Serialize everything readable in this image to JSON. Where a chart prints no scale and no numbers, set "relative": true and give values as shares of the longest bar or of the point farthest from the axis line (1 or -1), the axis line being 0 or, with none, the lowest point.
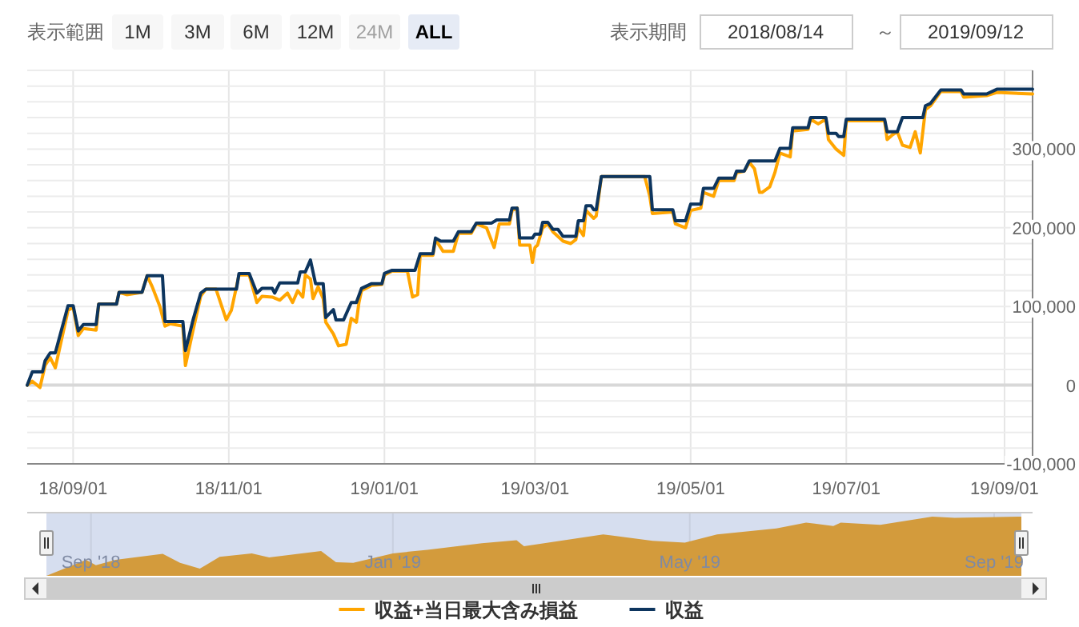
{
  "chart_data": [
    {
      "type": "line",
      "xlabel": null,
      "annotations": [
        "表示範囲",
        "1M",
        "3M",
        "6M",
        "12M",
        "24M",
        "ALL",
        "表示期間",
        "2018/08/14",
        "～",
        "2019/09/12"
      ],
      "xlim": [
        "2018-08-14",
        "2019-09-12"
      ],
      "xticks": [
        {
          "value": "2018-09-01",
          "label": "18/09/01"
        },
        {
          "value": "2018-11-01",
          "label": "18/11/01"
        },
        {
          "value": "2019-01-01",
          "label": "19/01/01"
        },
        {
          "value": "2019-03-01",
          "label": "19/03/01"
        },
        {
          "value": "2019-05-01",
          "label": "19/05/01"
        },
        {
          "value": "2019-07-01",
          "label": "19/07/01"
        },
        {
          "value": "2019-09-01",
          "label": "19/09/01"
        }
      ],
      "ylim": [
        -100000,
        400000
      ],
      "yticks": [
        {
          "value": -100000,
          "label": "-100,000"
        },
        {
          "value": -80000,
          "label": null
        },
        {
          "value": -60000,
          "label": null
        },
        {
          "value": -40000,
          "label": null
        },
        {
          "value": -20000,
          "label": null
        },
        0,
        {
          "value": 20000,
          "label": null
        },
        {
          "value": 40000,
          "label": null
        },
        {
          "value": 60000,
          "label": null
        },
        {
          "value": 80000,
          "label": null
        },
        {
          "value": 100000,
          "label": "100,000"
        },
        {
          "value": 120000,
          "label": null
        },
        {
          "value": 140000,
          "label": null
        },
        {
          "value": 160000,
          "label": null
        },
        {
          "value": 180000,
          "label": null
        },
        {
          "value": 200000,
          "label": "200,000"
        },
        {
          "value": 220000,
          "label": null
        },
        {
          "value": 240000,
          "label": null
        },
        {
          "value": 260000,
          "label": null
        },
        {
          "value": 280000,
          "label": null
        },
        {
          "value": 300000,
          "label": "300,000"
        },
        {
          "value": 320000,
          "label": null
        },
        {
          "value": 340000,
          "label": null
        },
        {
          "value": 360000,
          "label": null
        },
        {
          "value": 380000,
          "label": null
        },
        {
          "value": 400000,
          "label": null
        }
      ],
      "grid": true,
      "legend": "bottom",
      "marker": "none",
      "line_style": "solid",
      "series": [
        {
          "name": "収益+当日最大含み損益",
          "color": "#ffa500",
          "x": [
            "2018-08-14",
            "2018-08-16",
            "2018-08-19",
            "2018-08-21",
            "2018-08-23",
            "2018-08-25",
            "2018-08-30",
            "2018-09-01",
            "2018-09-03",
            "2018-09-05",
            "2018-09-10",
            "2018-09-11",
            "2018-09-18",
            "2018-09-19",
            "2018-09-22",
            "2018-09-28",
            "2018-09-30",
            "2018-10-02",
            "2018-10-05",
            "2018-10-07",
            "2018-10-09",
            "2018-10-14",
            "2018-10-15",
            "2018-10-18",
            "2018-10-21",
            "2018-10-23",
            "2018-10-27",
            "2018-10-31",
            "2018-11-02",
            "2018-11-05",
            "2018-11-09",
            "2018-11-12",
            "2018-11-14",
            "2018-11-18",
            "2018-11-21",
            "2018-11-24",
            "2018-11-26",
            "2018-11-28",
            "2018-11-30",
            "2018-12-01",
            "2018-12-03",
            "2018-12-04",
            "2018-12-06",
            "2018-12-08",
            "2018-12-09",
            "2018-12-12",
            "2018-12-14",
            "2018-12-17",
            "2018-12-19",
            "2018-12-21",
            "2018-12-22",
            "2018-12-23",
            "2018-12-27",
            "2018-12-31",
            "2019-01-01",
            "2019-01-04",
            "2019-01-10",
            "2019-01-12",
            "2019-01-14",
            "2019-01-15",
            "2019-01-20",
            "2019-01-21",
            "2019-01-24",
            "2019-01-28",
            "2019-01-30",
            "2019-02-04",
            "2019-02-06",
            "2019-02-10",
            "2019-02-13",
            "2019-02-15",
            "2019-02-19",
            "2019-02-20",
            "2019-02-22",
            "2019-02-23",
            "2019-02-27",
            "2019-02-28",
            "2019-03-01",
            "2019-03-02",
            "2019-03-04",
            "2019-03-06",
            "2019-03-08",
            "2019-03-12",
            "2019-03-15",
            "2019-03-17",
            "2019-03-18",
            "2019-03-20",
            "2019-03-21",
            "2019-03-24",
            "2019-03-25",
            "2019-03-27",
            "2019-04-13",
            "2019-04-15",
            "2019-04-16",
            "2019-04-24",
            "2019-04-25",
            "2019-04-29",
            "2019-05-01",
            "2019-05-05",
            "2019-05-06",
            "2019-05-10",
            "2019-05-12",
            "2019-05-18",
            "2019-05-19",
            "2019-05-22",
            "2019-05-24",
            "2019-05-26",
            "2019-05-28",
            "2019-05-29",
            "2019-06-01",
            "2019-06-03",
            "2019-06-05",
            "2019-06-09",
            "2019-06-10",
            "2019-06-16",
            "2019-06-17",
            "2019-06-20",
            "2019-06-23",
            "2019-06-24",
            "2019-06-27",
            "2019-06-30",
            "2019-07-01",
            "2019-07-16",
            "2019-07-17",
            "2019-07-19",
            "2019-07-21",
            "2019-07-23",
            "2019-07-26",
            "2019-07-28",
            "2019-07-30",
            "2019-08-01",
            "2019-08-03",
            "2019-08-07",
            "2019-08-15",
            "2019-08-16",
            "2019-08-25",
            "2019-08-29",
            "2019-09-12"
          ],
          "values": [
            0,
            5000,
            -3000,
            25000,
            35000,
            22000,
            95000,
            99000,
            63000,
            72000,
            70000,
            103000,
            103000,
            118000,
            115000,
            118000,
            139000,
            125000,
            100000,
            75000,
            78000,
            75000,
            25000,
            70000,
            113000,
            122000,
            122000,
            83000,
            95000,
            140000,
            140000,
            105000,
            113000,
            112000,
            108000,
            117000,
            105000,
            120000,
            112000,
            140000,
            135000,
            110000,
            125000,
            110000,
            80000,
            65000,
            50000,
            52000,
            85000,
            80000,
            105000,
            120000,
            127000,
            128000,
            140000,
            145000,
            145000,
            112000,
            115000,
            165000,
            165000,
            185000,
            170000,
            170000,
            193000,
            193000,
            205000,
            200000,
            175000,
            205000,
            205000,
            222000,
            225000,
            178000,
            178000,
            156000,
            175000,
            178000,
            200000,
            205000,
            195000,
            183000,
            180000,
            185000,
            200000,
            190000,
            222000,
            212000,
            215000,
            265000,
            265000,
            240000,
            218000,
            220000,
            205000,
            200000,
            222000,
            225000,
            245000,
            240000,
            260000,
            260000,
            270000,
            272000,
            283000,
            275000,
            245000,
            245000,
            252000,
            270000,
            295000,
            290000,
            323000,
            325000,
            338000,
            332000,
            338000,
            312000,
            300000,
            292000,
            336000,
            336000,
            312000,
            318000,
            322000,
            305000,
            302000,
            322000,
            295000,
            350000,
            355000,
            373000,
            373000,
            366000,
            368000,
            372000,
            370000
          ]
        },
        {
          "name": "収益",
          "color": "#0d355e",
          "x": [
            "2018-08-14",
            "2018-08-16",
            "2018-08-20",
            "2018-08-21",
            "2018-08-23",
            "2018-08-25",
            "2018-08-30",
            "2018-09-01",
            "2018-09-03",
            "2018-09-05",
            "2018-09-10",
            "2018-09-11",
            "2018-09-18",
            "2018-09-19",
            "2018-09-28",
            "2018-09-30",
            "2018-10-06",
            "2018-10-07",
            "2018-10-14",
            "2018-10-15",
            "2018-10-18",
            "2018-10-21",
            "2018-10-23",
            "2018-11-04",
            "2018-11-05",
            "2018-11-09",
            "2018-11-12",
            "2018-11-14",
            "2018-11-18",
            "2018-11-19",
            "2018-11-21",
            "2018-11-28",
            "2018-11-29",
            "2018-12-01",
            "2018-12-03",
            "2018-12-05",
            "2018-12-08",
            "2018-12-09",
            "2018-12-12",
            "2018-12-13",
            "2018-12-16",
            "2018-12-19",
            "2018-12-21",
            "2018-12-23",
            "2018-12-27",
            "2018-12-31",
            "2019-01-01",
            "2019-01-04",
            "2019-01-13",
            "2019-01-15",
            "2019-01-20",
            "2019-01-21",
            "2019-01-23",
            "2019-01-28",
            "2019-01-30",
            "2019-02-04",
            "2019-02-06",
            "2019-02-12",
            "2019-02-14",
            "2019-02-19",
            "2019-02-20",
            "2019-02-22",
            "2019-02-23",
            "2019-02-28",
            "2019-03-01",
            "2019-03-03",
            "2019-03-04",
            "2019-03-06",
            "2019-03-08",
            "2019-03-10",
            "2019-03-12",
            "2019-03-17",
            "2019-03-18",
            "2019-03-20",
            "2019-03-21",
            "2019-03-23",
            "2019-03-24",
            "2019-03-25",
            "2019-03-27",
            "2019-04-15",
            "2019-04-16",
            "2019-04-24",
            "2019-04-25",
            "2019-04-29",
            "2019-05-01",
            "2019-05-05",
            "2019-05-06",
            "2019-05-10",
            "2019-05-12",
            "2019-05-18",
            "2019-05-19",
            "2019-05-22",
            "2019-05-24",
            "2019-06-03",
            "2019-06-05",
            "2019-06-09",
            "2019-06-10",
            "2019-06-16",
            "2019-06-17",
            "2019-06-23",
            "2019-06-24",
            "2019-06-27",
            "2019-06-28",
            "2019-06-30",
            "2019-07-01",
            "2019-07-16",
            "2019-07-17",
            "2019-07-21",
            "2019-07-23",
            "2019-07-31",
            "2019-08-01",
            "2019-08-03",
            "2019-08-07",
            "2019-08-15",
            "2019-08-16",
            "2019-08-25",
            "2019-08-29",
            "2019-09-12"
          ],
          "values": [
            0,
            17000,
            17000,
            31000,
            41000,
            41000,
            101000,
            101000,
            69000,
            77000,
            77000,
            103000,
            103000,
            118000,
            118000,
            139000,
            139000,
            81000,
            81000,
            44000,
            83000,
            117000,
            122000,
            122000,
            142000,
            142000,
            117000,
            123000,
            123000,
            117000,
            130000,
            130000,
            144000,
            144000,
            159000,
            129000,
            129000,
            86000,
            96000,
            83000,
            83000,
            105000,
            105000,
            123000,
            129000,
            129000,
            142000,
            146000,
            146000,
            167000,
            167000,
            187000,
            183000,
            183000,
            195000,
            195000,
            206000,
            206000,
            210000,
            210000,
            225000,
            225000,
            187000,
            187000,
            192000,
            192000,
            207000,
            207000,
            198000,
            198000,
            189000,
            189000,
            209000,
            209000,
            228000,
            228000,
            223000,
            223000,
            265000,
            265000,
            223000,
            223000,
            209000,
            209000,
            230000,
            230000,
            250000,
            250000,
            263000,
            263000,
            272000,
            272000,
            285000,
            285000,
            301000,
            301000,
            327000,
            327000,
            340000,
            340000,
            320000,
            320000,
            316000,
            316000,
            338000,
            338000,
            322000,
            322000,
            340000,
            340000,
            355000,
            358000,
            375000,
            375000,
            370000,
            370000,
            376000,
            376000
          ]
        }
      ]
    },
    {
      "type": "area",
      "relative": true,
      "grid": "x",
      "xlim": [
        "2018-08-14",
        "2019-09-12"
      ],
      "xticks": [
        {
          "value": "2018-09-01",
          "label": "Sep '18"
        },
        {
          "value": "2019-01-01",
          "label": "Jan '19"
        },
        {
          "value": "2019-05-01",
          "label": "May '19"
        },
        {
          "value": "2019-09-01",
          "label": "Sep '19"
        }
      ],
      "series": [
        {
          "color": "#d39b3c",
          "x": [
            "2018-08-14",
            "2018-08-30",
            "2018-09-03",
            "2018-09-11",
            "2018-09-30",
            "2018-10-07",
            "2018-10-15",
            "2018-10-23",
            "2018-11-05",
            "2018-11-12",
            "2018-12-03",
            "2018-12-09",
            "2018-12-16",
            "2019-01-01",
            "2019-01-15",
            "2019-02-06",
            "2019-02-20",
            "2019-02-23",
            "2019-03-27",
            "2019-04-16",
            "2019-04-29",
            "2019-05-12",
            "2019-06-05",
            "2019-06-17",
            "2019-06-28",
            "2019-07-01",
            "2019-07-17",
            "2019-08-07",
            "2019-08-16",
            "2019-09-12"
          ],
          "values": [
            0,
            0.27,
            0.18,
            0.27,
            0.37,
            0.22,
            0.12,
            0.32,
            0.38,
            0.31,
            0.42,
            0.23,
            0.22,
            0.38,
            0.44,
            0.55,
            0.6,
            0.5,
            0.7,
            0.59,
            0.56,
            0.7,
            0.8,
            0.9,
            0.84,
            0.9,
            0.86,
            1,
            0.98,
            1
          ]
        }
      ]
    }
  ]
}
